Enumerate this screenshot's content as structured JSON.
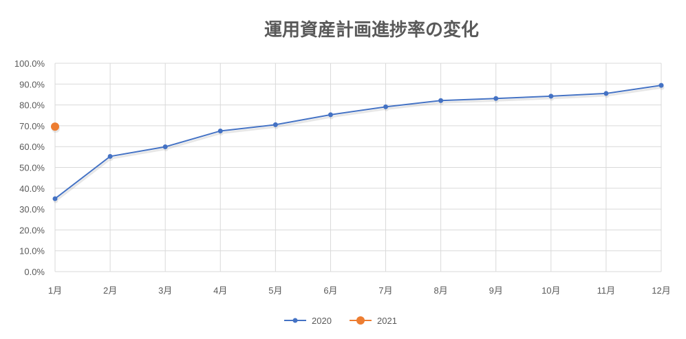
{
  "chart_data": {
    "type": "line",
    "title": "運用資産計画進捗率の変化",
    "categories": [
      "1月",
      "2月",
      "3月",
      "4月",
      "5月",
      "6月",
      "7月",
      "8月",
      "9月",
      "10月",
      "11月",
      "12月"
    ],
    "y_ticks": [
      "0.0%",
      "10.0%",
      "20.0%",
      "30.0%",
      "40.0%",
      "50.0%",
      "60.0%",
      "70.0%",
      "80.0%",
      "90.0%",
      "100.0%"
    ],
    "ylim": [
      0,
      100
    ],
    "grid": true,
    "legend_position": "bottom",
    "series": [
      {
        "name": "2020",
        "color": "#4472c4",
        "values": [
          35.0,
          55.3,
          59.9,
          67.5,
          70.5,
          75.3,
          79.1,
          82.1,
          83.1,
          84.2,
          85.5,
          89.4
        ]
      },
      {
        "name": "2021",
        "color": "#ed7d31",
        "values": [
          69.6,
          null,
          null,
          null,
          null,
          null,
          null,
          null,
          null,
          null,
          null,
          null
        ]
      }
    ]
  }
}
